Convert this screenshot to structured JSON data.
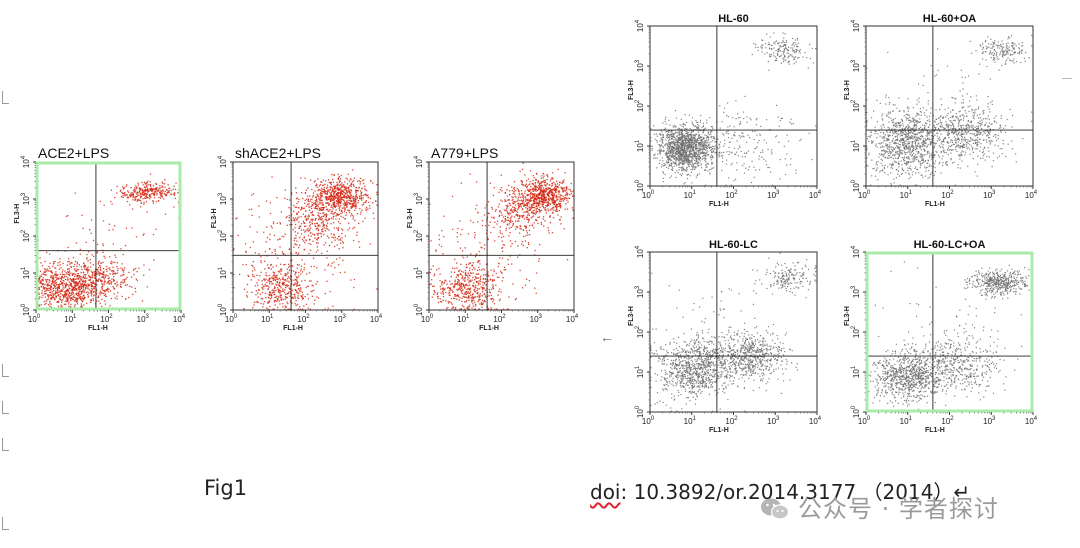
{
  "caption": {
    "fig_label": "Fig1",
    "doi_prefix": "doi",
    "doi_rest": ": 10.3892/or.2014.3177 （2014）↵"
  },
  "watermark": {
    "text": "公众号 · 学者探讨",
    "icon": "wechat-icon"
  },
  "colors": {
    "red": "#d42a16",
    "gray": "#6f6f6f",
    "green": "#a9ecaa"
  },
  "axis_text": {
    "xlabel": "FL1-H",
    "ylabel": "FL3-H",
    "ticks": [
      "10",
      "10",
      "10",
      "10",
      "10"
    ],
    "exponents": [
      "0",
      "1",
      "2",
      "3",
      "4"
    ]
  },
  "chart_data": [
    {
      "type": "scatter",
      "title": "ACE2+LPS",
      "xlabel": "FL1-H",
      "ylabel": "FL3-H",
      "xscale": "log",
      "yscale": "log",
      "xlim": [
        1,
        10000
      ],
      "ylim": [
        1,
        10000
      ],
      "gate": {
        "x": 45,
        "y": 40
      },
      "color": "red",
      "highlighted": true,
      "populations": [
        {
          "x": 6,
          "y": 4,
          "sx": 0.55,
          "sy": 0.3,
          "fraction": 0.55
        },
        {
          "x": 60,
          "y": 7,
          "sx": 0.45,
          "sy": 0.3,
          "fraction": 0.2
        },
        {
          "x": 1200,
          "y": 1500,
          "sx": 0.35,
          "sy": 0.14,
          "fraction": 0.2
        },
        {
          "x": 80,
          "y": 80,
          "sx": 1.0,
          "sy": 0.9,
          "fraction": 0.05
        }
      ]
    },
    {
      "type": "scatter",
      "title": "shACE2+LPS",
      "xlabel": "FL1-H",
      "ylabel": "FL3-H",
      "xscale": "log",
      "yscale": "log",
      "xlim": [
        1,
        10000
      ],
      "ylim": [
        1,
        10000
      ],
      "gate": {
        "x": 40,
        "y": 30
      },
      "color": "red",
      "highlighted": false,
      "populations": [
        {
          "x": 1000,
          "y": 1200,
          "sx": 0.4,
          "sy": 0.25,
          "fraction": 0.38
        },
        {
          "x": 200,
          "y": 300,
          "sx": 0.45,
          "sy": 0.4,
          "fraction": 0.22
        },
        {
          "x": 20,
          "y": 4,
          "sx": 0.45,
          "sy": 0.3,
          "fraction": 0.25
        },
        {
          "x": 60,
          "y": 60,
          "sx": 0.9,
          "sy": 0.8,
          "fraction": 0.15
        }
      ]
    },
    {
      "type": "scatter",
      "title": "A779+LPS",
      "xlabel": "FL1-H",
      "ylabel": "FL3-H",
      "xscale": "log",
      "yscale": "log",
      "xlim": [
        1,
        10000
      ],
      "ylim": [
        1,
        10000
      ],
      "gate": {
        "x": 40,
        "y": 30
      },
      "color": "red",
      "highlighted": false,
      "populations": [
        {
          "x": 1500,
          "y": 1200,
          "sx": 0.35,
          "sy": 0.25,
          "fraction": 0.4
        },
        {
          "x": 300,
          "y": 500,
          "sx": 0.4,
          "sy": 0.35,
          "fraction": 0.2
        },
        {
          "x": 12,
          "y": 4,
          "sx": 0.45,
          "sy": 0.3,
          "fraction": 0.28
        },
        {
          "x": 60,
          "y": 60,
          "sx": 0.9,
          "sy": 0.8,
          "fraction": 0.12
        }
      ]
    },
    {
      "type": "scatter",
      "title": "HL-60",
      "xlabel": "FL1-H",
      "ylabel": "FL3-H",
      "xscale": "log",
      "yscale": "log",
      "xlim": [
        1,
        10000
      ],
      "ylim": [
        1,
        10000
      ],
      "gate": {
        "x": 40,
        "y": 25
      },
      "color": "gray",
      "highlighted": false,
      "populations": [
        {
          "x": 7,
          "y": 9,
          "sx": 0.32,
          "sy": 0.28,
          "fraction": 0.75
        },
        {
          "x": 1500,
          "y": 2500,
          "sx": 0.3,
          "sy": 0.18,
          "fraction": 0.1
        },
        {
          "x": 100,
          "y": 10,
          "sx": 0.7,
          "sy": 0.5,
          "fraction": 0.15
        }
      ]
    },
    {
      "type": "scatter",
      "title": "HL-60+OA",
      "xlabel": "FL1-H",
      "ylabel": "FL3-H",
      "xscale": "log",
      "yscale": "log",
      "xlim": [
        1,
        10000
      ],
      "ylim": [
        1,
        10000
      ],
      "gate": {
        "x": 40,
        "y": 25
      },
      "color": "gray",
      "highlighted": false,
      "populations": [
        {
          "x": 10,
          "y": 12,
          "sx": 0.45,
          "sy": 0.4,
          "fraction": 0.55
        },
        {
          "x": 250,
          "y": 20,
          "sx": 0.45,
          "sy": 0.35,
          "fraction": 0.3
        },
        {
          "x": 1800,
          "y": 2500,
          "sx": 0.3,
          "sy": 0.15,
          "fraction": 0.1
        },
        {
          "x": 80,
          "y": 80,
          "sx": 0.8,
          "sy": 0.7,
          "fraction": 0.05
        }
      ]
    },
    {
      "type": "scatter",
      "title": "HL-60-LC",
      "xlabel": "FL1-H",
      "ylabel": "FL3-H",
      "xscale": "log",
      "yscale": "log",
      "xlim": [
        1,
        10000
      ],
      "ylim": [
        1,
        10000
      ],
      "gate": {
        "x": 40,
        "y": 25
      },
      "color": "gray",
      "highlighted": false,
      "populations": [
        {
          "x": 12,
          "y": 12,
          "sx": 0.45,
          "sy": 0.35,
          "fraction": 0.5
        },
        {
          "x": 250,
          "y": 25,
          "sx": 0.45,
          "sy": 0.3,
          "fraction": 0.35
        },
        {
          "x": 2000,
          "y": 2200,
          "sx": 0.3,
          "sy": 0.18,
          "fraction": 0.1
        },
        {
          "x": 80,
          "y": 80,
          "sx": 0.8,
          "sy": 0.8,
          "fraction": 0.05
        }
      ]
    },
    {
      "type": "scatter",
      "title": "HL-60-LC+OA",
      "xlabel": "FL1-H",
      "ylabel": "FL3-H",
      "xscale": "log",
      "yscale": "log",
      "xlim": [
        1,
        10000
      ],
      "ylim": [
        1,
        10000
      ],
      "gate": {
        "x": 40,
        "y": 25
      },
      "color": "gray",
      "highlighted": true,
      "populations": [
        {
          "x": 10,
          "y": 8,
          "sx": 0.4,
          "sy": 0.3,
          "fraction": 0.45
        },
        {
          "x": 150,
          "y": 15,
          "sx": 0.5,
          "sy": 0.35,
          "fraction": 0.25
        },
        {
          "x": 1500,
          "y": 1800,
          "sx": 0.35,
          "sy": 0.15,
          "fraction": 0.25
        },
        {
          "x": 80,
          "y": 80,
          "sx": 0.9,
          "sy": 0.8,
          "fraction": 0.05
        }
      ]
    }
  ]
}
